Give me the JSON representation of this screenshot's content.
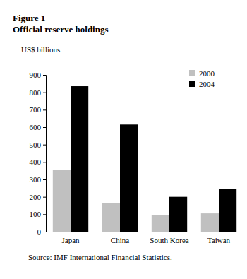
{
  "chart_data": {
    "type": "bar",
    "title": "Figure 1",
    "subtitle": "Official reserve holdings",
    "y_label": "US$ billions",
    "source": "Source: IMF International Financial Statistics.",
    "categories": [
      "Japan",
      "China",
      "South Korea",
      "Taiwan"
    ],
    "series": [
      {
        "name": "2000",
        "color": "#c0c0c0",
        "values": [
          355,
          165,
          95,
          105
        ]
      },
      {
        "name": "2004",
        "color": "#000000",
        "values": [
          835,
          615,
          200,
          245
        ]
      }
    ],
    "ylim": [
      0,
      900
    ],
    "yticks": [
      0,
      100,
      200,
      300,
      400,
      500,
      600,
      700,
      800,
      900
    ],
    "grid": false,
    "legend": "top-right"
  }
}
